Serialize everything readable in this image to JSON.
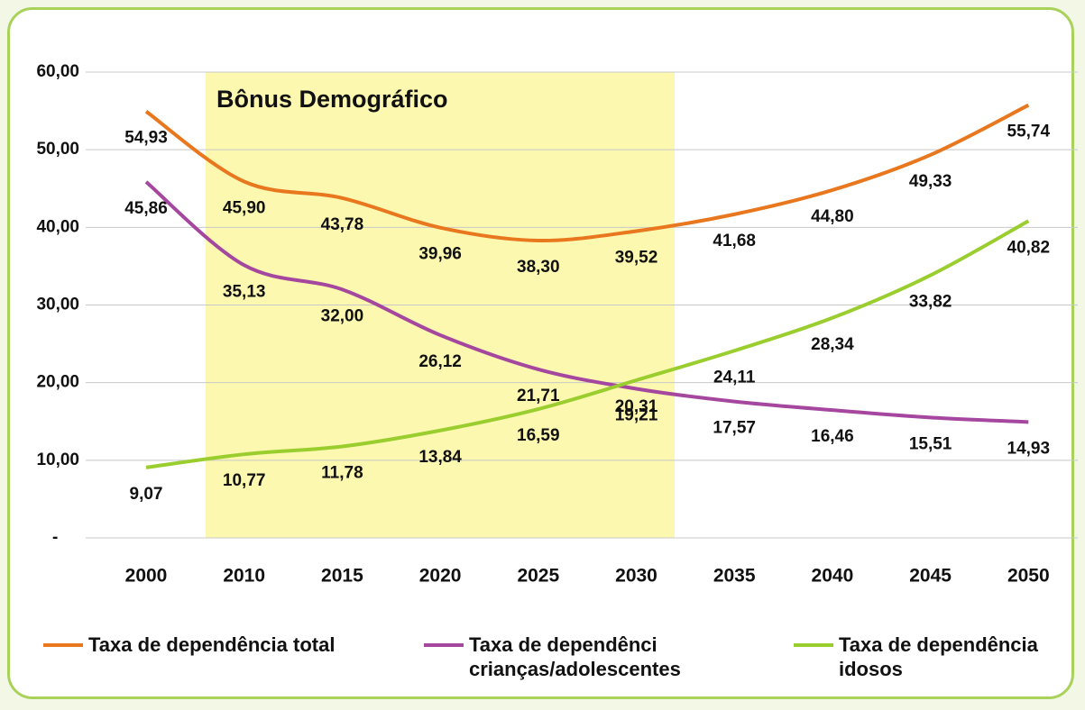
{
  "chart_data": {
    "type": "line",
    "annotation": "Bônus Demográfico",
    "categories": [
      "2000",
      "2010",
      "2015",
      "2020",
      "2025",
      "2030",
      "2035",
      "2040",
      "2045",
      "2050"
    ],
    "series": [
      {
        "name": "Taxa de dependência total",
        "color": "#e8771e",
        "values": [
          54.93,
          45.9,
          43.78,
          39.96,
          38.3,
          39.52,
          41.68,
          44.8,
          49.33,
          55.74
        ],
        "value_labels": [
          "54,93",
          "45,90",
          "43,78",
          "39,96",
          "38,30",
          "39,52",
          "41,68",
          "44,80",
          "49,33",
          "55,74"
        ]
      },
      {
        "name": "Taxa de dependênci crianças/adolescentes",
        "color": "#a5479f",
        "values": [
          45.86,
          35.13,
          32.0,
          26.12,
          21.71,
          19.21,
          17.57,
          16.46,
          15.51,
          14.93
        ],
        "value_labels": [
          "45,86",
          "35,13",
          "32,00",
          "26,12",
          "21,71",
          "19,21",
          "17,57",
          "16,46",
          "15,51",
          "14,93"
        ]
      },
      {
        "name": "Taxa de dependência idosos",
        "color": "#9acd2e",
        "values": [
          9.07,
          10.77,
          11.78,
          13.84,
          16.59,
          20.31,
          24.11,
          28.34,
          33.82,
          40.82
        ],
        "value_labels": [
          "9,07",
          "10,77",
          "11,78",
          "13,84",
          "16,59",
          "20,31",
          "24,11",
          "28,34",
          "33,82",
          "40,82"
        ]
      }
    ],
    "ylim": [
      0,
      60
    ],
    "yticks": [
      {
        "value": 0,
        "label": "-"
      },
      {
        "value": 10,
        "label": "10,00"
      },
      {
        "value": 20,
        "label": "20,00"
      },
      {
        "value": 30,
        "label": "30,00"
      },
      {
        "value": 40,
        "label": "40,00"
      },
      {
        "value": 50,
        "label": "50,00"
      },
      {
        "value": 60,
        "label": "60,00"
      }
    ],
    "grid": true
  }
}
